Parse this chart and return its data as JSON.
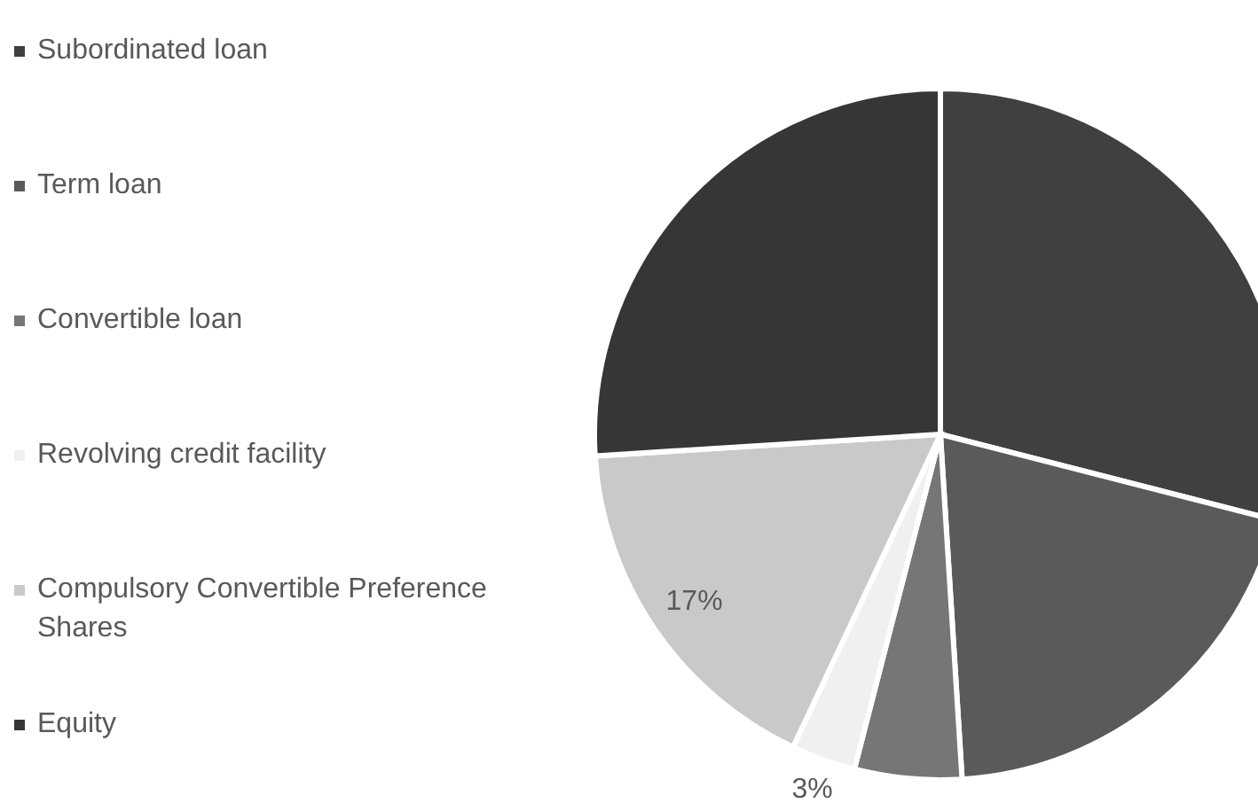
{
  "chart_data": {
    "type": "pie",
    "categories": [
      "Subordinated loan",
      "Term loan",
      "Convertible loan",
      "Revolving credit facility",
      "Compulsory Convertible Preference Shares",
      "Equity"
    ],
    "values": [
      29,
      20,
      5,
      3,
      17,
      26
    ],
    "colors": [
      "#404040",
      "#5a5a5a",
      "#767676",
      "#f0f0f0",
      "#c9c9c9",
      "#363636"
    ],
    "value_labels": [
      null,
      null,
      null,
      "3%",
      "17%",
      null
    ],
    "legend": "left"
  }
}
